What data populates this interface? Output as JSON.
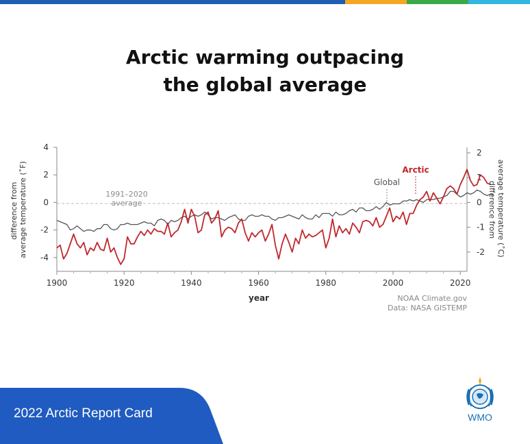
{
  "title_lines": [
    "Arctic warming outpacing",
    "the global average"
  ],
  "footer": {
    "label": "2022 Arctic Report Card",
    "logo_text": "WMO"
  },
  "credits": [
    "NOAA Climate.gov",
    "Data: NASA GISTEMP"
  ],
  "colors": {
    "arctic": "#c0262b",
    "global": "#555555",
    "footer_bg": "#1f5bc0",
    "bar_blue": "#1d5fb0",
    "bar_orange": "#f5a623",
    "bar_green": "#3aaa48",
    "bar_teal": "#33b6df"
  },
  "chart_data": {
    "type": "line",
    "xlabel": "year",
    "ylabel_left": "difference from average temperature (˚F)",
    "ylabel_right": "difference from average temperature (˚C)",
    "xlim": [
      1900,
      2022
    ],
    "ylim_f": [
      -5,
      4
    ],
    "x_ticks": [
      1900,
      1920,
      1940,
      1960,
      1980,
      2000,
      2020
    ],
    "y_ticks_f": [
      4,
      2,
      0,
      -2,
      -4
    ],
    "y_ticks_c": [
      2,
      1,
      0,
      -1,
      -2
    ],
    "y_tick_labels_f": [
      "4",
      "2",
      "0",
      "-2",
      "-4"
    ],
    "y_tick_labels_c": [
      "2",
      "1",
      "0",
      "-1",
      "-2"
    ],
    "baseline_label": [
      "1991–2020",
      "average"
    ],
    "annotations": {
      "global": "Global",
      "arctic": "Arctic"
    },
    "start_year": 1900,
    "series": [
      {
        "name": "Arctic",
        "values": [
          -3.3,
          -3.1,
          -4.1,
          -3.7,
          -3.0,
          -2.3,
          -3.0,
          -3.3,
          -2.9,
          -3.8,
          -3.3,
          -3.5,
          -2.9,
          -3.4,
          -3.5,
          -2.6,
          -3.6,
          -3.3,
          -4.0,
          -4.5,
          -4.1,
          -2.5,
          -3.0,
          -3.0,
          -2.5,
          -2.1,
          -2.4,
          -2.0,
          -2.3,
          -1.9,
          -2.1,
          -2.1,
          -2.3,
          -1.5,
          -2.5,
          -2.2,
          -2.0,
          -1.4,
          -0.5,
          -1.5,
          -0.5,
          -1.0,
          -2.2,
          -2.0,
          -0.9,
          -0.7,
          -1.5,
          -1.2,
          -0.6,
          -2.5,
          -2.0,
          -1.8,
          -1.9,
          -2.2,
          -1.5,
          -1.2,
          -2.2,
          -2.8,
          -2.2,
          -2.5,
          -2.2,
          -2.0,
          -2.8,
          -2.3,
          -1.6,
          -3.1,
          -4.1,
          -3.0,
          -2.3,
          -2.9,
          -3.6,
          -2.6,
          -3.0,
          -2.0,
          -2.6,
          -2.3,
          -2.5,
          -2.4,
          -2.2,
          -2.0,
          -3.3,
          -2.6,
          -1.2,
          -2.5,
          -1.7,
          -2.2,
          -1.9,
          -2.3,
          -1.5,
          -1.8,
          -2.2,
          -1.4,
          -1.3,
          -1.4,
          -1.7,
          -1.1,
          -1.8,
          -1.6,
          -1.0,
          -0.4,
          -1.4,
          -1.0,
          -1.2,
          -0.7,
          -1.6,
          -0.8,
          -0.8,
          -0.2,
          0.2,
          0.4,
          0.8,
          0.1,
          0.7,
          0.3,
          -0.1,
          0.4,
          1.0,
          1.2,
          1.0,
          0.6,
          1.3,
          1.8,
          2.4,
          1.6,
          1.2,
          1.3,
          2.0,
          1.8,
          1.4,
          1.3
        ]
      },
      {
        "name": "Global",
        "values": [
          -1.3,
          -1.4,
          -1.5,
          -1.6,
          -2.0,
          -1.9,
          -1.7,
          -1.9,
          -2.1,
          -2.0,
          -2.0,
          -2.1,
          -1.9,
          -1.9,
          -1.6,
          -1.6,
          -1.9,
          -2.0,
          -1.9,
          -1.6,
          -1.6,
          -1.5,
          -1.6,
          -1.6,
          -1.6,
          -1.5,
          -1.4,
          -1.5,
          -1.5,
          -1.7,
          -1.3,
          -1.2,
          -1.3,
          -1.6,
          -1.3,
          -1.4,
          -1.3,
          -1.1,
          -1.0,
          -1.2,
          -1.0,
          -0.9,
          -1.0,
          -0.9,
          -0.7,
          -0.9,
          -1.2,
          -1.1,
          -1.1,
          -1.2,
          -1.3,
          -1.1,
          -1.0,
          -0.9,
          -1.2,
          -1.3,
          -1.3,
          -1.0,
          -0.9,
          -1.0,
          -1.0,
          -0.9,
          -1.0,
          -1.0,
          -1.2,
          -1.3,
          -1.1,
          -1.1,
          -1.0,
          -0.9,
          -1.0,
          -1.1,
          -1.2,
          -0.9,
          -1.1,
          -1.2,
          -1.2,
          -0.9,
          -1.1,
          -0.8,
          -0.8,
          -0.8,
          -1.0,
          -0.7,
          -0.9,
          -0.9,
          -0.8,
          -0.6,
          -0.5,
          -0.7,
          -0.4,
          -0.4,
          -0.6,
          -0.6,
          -0.5,
          -0.3,
          -0.5,
          -0.3,
          0.0,
          -0.2,
          -0.1,
          -0.1,
          -0.1,
          0.1,
          0.1,
          0.2,
          0.1,
          0.2,
          0.1,
          0.0,
          0.2,
          0.2,
          0.2,
          0.3,
          0.3,
          0.4,
          0.5,
          0.8,
          0.8,
          0.6,
          0.4,
          0.5,
          0.7,
          0.6,
          0.7,
          0.9,
          0.8,
          0.6,
          0.5,
          0.6,
          0.5
        ]
      }
    ]
  }
}
